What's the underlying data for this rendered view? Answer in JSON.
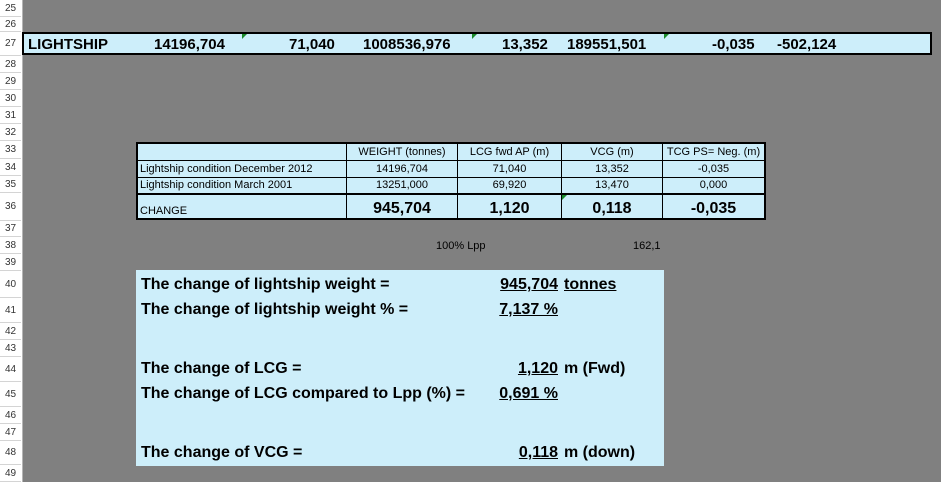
{
  "row_numbers": [
    "25",
    "26",
    "27",
    "28",
    "29",
    "30",
    "31",
    "32",
    "33",
    "34",
    "35",
    "36",
    "37",
    "38",
    "39",
    "40",
    "41",
    "42",
    "43",
    "44",
    "45",
    "46",
    "47",
    "48",
    "49"
  ],
  "lightship_row": {
    "label": "LIGHTSHIP",
    "values": [
      "14196,704",
      "71,040",
      "1008536,976",
      "13,352",
      "189551,501",
      "-0,035",
      "-502,124"
    ]
  },
  "table": {
    "headers": [
      "WEIGHT (tonnes)",
      "LCG fwd AP (m)",
      "VCG (m)",
      "TCG PS= Neg. (m)"
    ],
    "rows": [
      {
        "label": "Lightship condition December 2012",
        "values": [
          "14196,704",
          "71,040",
          "13,352",
          "-0,035"
        ]
      },
      {
        "label": "Lightship condition March 2001",
        "values": [
          "13251,000",
          "69,920",
          "13,470",
          "0,000"
        ]
      }
    ],
    "change": {
      "label": "CHANGE",
      "values": [
        "945,704",
        "1,120",
        "0,118",
        "-0,035"
      ]
    }
  },
  "lpp": {
    "label": "100% Lpp",
    "value": "162,1"
  },
  "summary": [
    {
      "label": "The change of lightship weight =",
      "value": "945,704",
      "unit": "tonnes"
    },
    {
      "label": "The change of lightship weight % =",
      "value": "7,137 %",
      "unit": ""
    },
    {
      "label": "The change of LCG =",
      "value": "1,120",
      "unit": "m (Fwd)"
    },
    {
      "label": "The change of LCG compared to Lpp (%) =",
      "value": "0,691 %",
      "unit": ""
    },
    {
      "label": "The change of VCG =",
      "value": "0,118",
      "unit": "m (down)"
    }
  ],
  "colors": {
    "cell_fill": "#cdeefa",
    "background": "#808080",
    "error_indicator": "#1a8a2a"
  }
}
